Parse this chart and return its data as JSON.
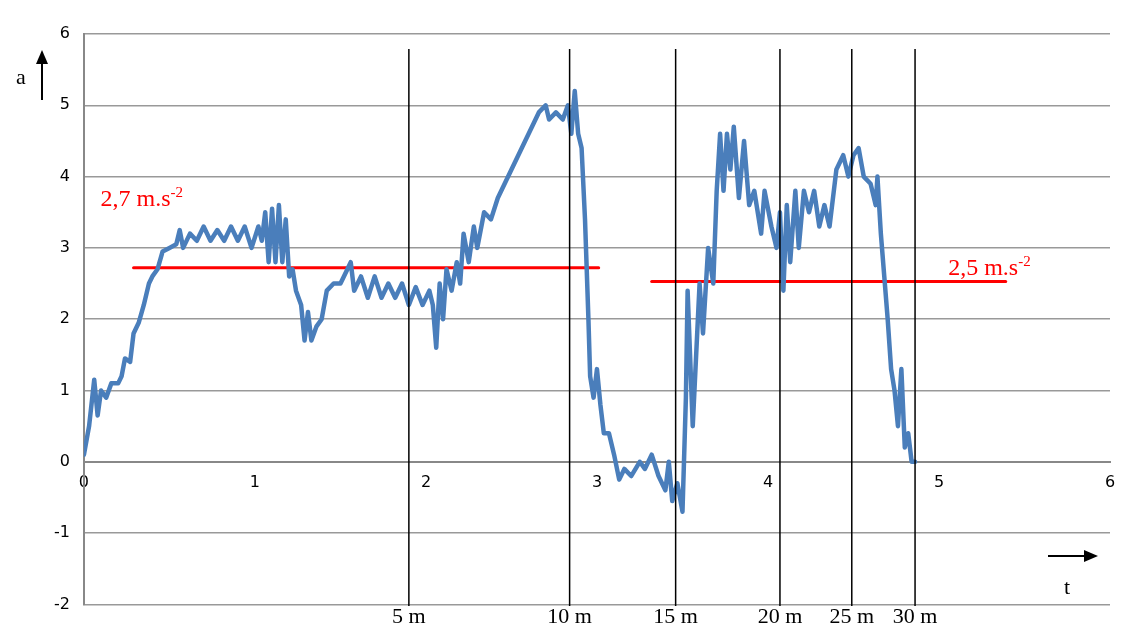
{
  "chart_data": {
    "type": "line",
    "xlabel": "t",
    "ylabel": "a",
    "xlim": [
      0,
      6
    ],
    "xticks": [
      0,
      1,
      2,
      3,
      4,
      5,
      6
    ],
    "ylim": [
      -2,
      6
    ],
    "yticks": [
      -2,
      -1,
      0,
      1,
      2,
      3,
      4,
      5,
      6
    ],
    "grid": "y",
    "legend": false,
    "marker": "none",
    "line_style": "solid",
    "series": [
      {
        "color": "#4a7ebb",
        "x": [
          0,
          0.03,
          0.06,
          0.08,
          0.1,
          0.13,
          0.16,
          0.2,
          0.22,
          0.24,
          0.27,
          0.29,
          0.32,
          0.35,
          0.38,
          0.4,
          0.43,
          0.46,
          0.5,
          0.54,
          0.56,
          0.58,
          0.62,
          0.66,
          0.7,
          0.74,
          0.78,
          0.82,
          0.86,
          0.9,
          0.94,
          0.98,
          1.02,
          1.04,
          1.06,
          1.08,
          1.1,
          1.12,
          1.14,
          1.16,
          1.18,
          1.2,
          1.22,
          1.24,
          1.27,
          1.29,
          1.31,
          1.33,
          1.36,
          1.39,
          1.42,
          1.46,
          1.5,
          1.52,
          1.56,
          1.58,
          1.62,
          1.66,
          1.7,
          1.74,
          1.78,
          1.82,
          1.86,
          1.9,
          1.94,
          1.98,
          2.02,
          2.04,
          2.06,
          2.08,
          2.1,
          2.12,
          2.15,
          2.18,
          2.2,
          2.22,
          2.25,
          2.28,
          2.3,
          2.34,
          2.38,
          2.42,
          2.46,
          2.5,
          2.54,
          2.58,
          2.62,
          2.66,
          2.7,
          2.72,
          2.76,
          2.8,
          2.83,
          2.85,
          2.87,
          2.89,
          2.91,
          2.93,
          2.95,
          2.96,
          2.98,
          3,
          3.02,
          3.04,
          3.07,
          3.1,
          3.13,
          3.16,
          3.2,
          3.25,
          3.28,
          3.32,
          3.36,
          3.4,
          3.42,
          3.44,
          3.47,
          3.5,
          3.52,
          3.53,
          3.56,
          3.6,
          3.62,
          3.65,
          3.68,
          3.7,
          3.72,
          3.74,
          3.76,
          3.78,
          3.8,
          3.83,
          3.86,
          3.89,
          3.92,
          3.96,
          3.98,
          4.02,
          4.05,
          4.07,
          4.09,
          4.11,
          4.13,
          4.16,
          4.18,
          4.21,
          4.24,
          4.27,
          4.3,
          4.33,
          4.36,
          4.4,
          4.44,
          4.47,
          4.5,
          4.53,
          4.56,
          4.6,
          4.63,
          4.64,
          4.66,
          4.68,
          4.7,
          4.72,
          4.74,
          4.76,
          4.78,
          4.8,
          4.82,
          4.84,
          4.86
        ],
        "values": [
          0.1,
          0.5,
          1.15,
          0.65,
          1,
          0.9,
          1.1,
          1.1,
          1.2,
          1.45,
          1.4,
          1.8,
          1.95,
          2.2,
          2.5,
          2.6,
          2.7,
          2.95,
          3,
          3.05,
          3.25,
          3,
          3.2,
          3.1,
          3.3,
          3.1,
          3.25,
          3.1,
          3.3,
          3.1,
          3.3,
          3,
          3.3,
          3.1,
          3.5,
          2.8,
          3.55,
          2.8,
          3.6,
          2.8,
          3.4,
          2.6,
          2.7,
          2.4,
          2.2,
          1.7,
          2.1,
          1.7,
          1.9,
          2,
          2.4,
          2.5,
          2.5,
          2.6,
          2.8,
          2.4,
          2.6,
          2.3,
          2.6,
          2.3,
          2.5,
          2.3,
          2.5,
          2.2,
          2.45,
          2.2,
          2.4,
          2.2,
          1.6,
          2.5,
          2,
          2.7,
          2.4,
          2.8,
          2.5,
          3.2,
          2.8,
          3.3,
          3,
          3.5,
          3.4,
          3.7,
          3.9,
          4.1,
          4.3,
          4.5,
          4.7,
          4.9,
          5,
          4.8,
          4.9,
          4.8,
          5,
          4.6,
          5.2,
          4.6,
          4.4,
          3.4,
          2,
          1.2,
          0.9,
          1.3,
          0.8,
          0.4,
          0.4,
          0.1,
          -0.25,
          -0.1,
          -0.2,
          0,
          -0.1,
          0.1,
          -0.2,
          -0.4,
          0,
          -0.55,
          -0.3,
          -0.7,
          0.9,
          2.4,
          0.5,
          2.5,
          1.8,
          3,
          2.5,
          3.8,
          4.6,
          3.8,
          4.6,
          4.1,
          4.7,
          3.7,
          4.5,
          3.6,
          3.8,
          3.2,
          3.8,
          3.3,
          3,
          3.5,
          2.4,
          3.6,
          2.8,
          3.8,
          3,
          3.8,
          3.5,
          3.8,
          3.3,
          3.6,
          3.3,
          4.1,
          4.3,
          4,
          4.3,
          4.4,
          4,
          3.9,
          3.6,
          4,
          3.2,
          2.6,
          2,
          1.3,
          1,
          0.5,
          1.3,
          0.2,
          0.4,
          0,
          0
        ]
      },
      {
        "color": "#ff0000",
        "x": [
          0.29,
          3.01
        ],
        "values": [
          2.72,
          2.72
        ]
      },
      {
        "color": "#ff0000",
        "x": [
          3.32,
          5.39
        ],
        "values": [
          2.53,
          2.53
        ]
      }
    ],
    "ref_lines": [
      {
        "axis": "x",
        "value": 1.9,
        "label": "5 m",
        "color": "#000000"
      },
      {
        "axis": "x",
        "value": 2.84,
        "label": "10 m",
        "color": "#000000"
      },
      {
        "axis": "x",
        "value": 3.46,
        "label": "15 m",
        "color": "#000000"
      },
      {
        "axis": "x",
        "value": 4.07,
        "label": "20 m",
        "color": "#000000"
      },
      {
        "axis": "x",
        "value": 4.49,
        "label": "25 m",
        "color": "#000000"
      },
      {
        "axis": "x",
        "value": 4.86,
        "label": "30 m",
        "color": "#000000"
      }
    ],
    "annotations": [
      "2,7 m.s$^{-2}$",
      "2,5 m.s$^{-2}$"
    ]
  }
}
